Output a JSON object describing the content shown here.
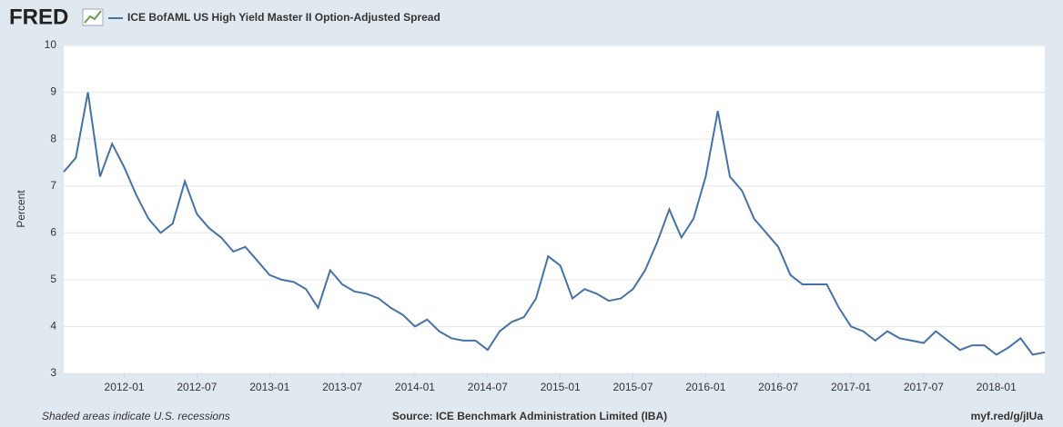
{
  "brand": "FRED",
  "chart_data": {
    "type": "line",
    "title": "ICE BofAML US High Yield Master II Option-Adjusted Spread",
    "y_label": "Percent",
    "x": [
      "2011-08",
      "2011-09",
      "2011-10",
      "2011-11",
      "2011-12",
      "2012-01",
      "2012-02",
      "2012-03",
      "2012-04",
      "2012-05",
      "2012-06",
      "2012-07",
      "2012-08",
      "2012-09",
      "2012-10",
      "2012-11",
      "2012-12",
      "2013-01",
      "2013-02",
      "2013-03",
      "2013-04",
      "2013-05",
      "2013-06",
      "2013-07",
      "2013-08",
      "2013-09",
      "2013-10",
      "2013-11",
      "2013-12",
      "2014-01",
      "2014-02",
      "2014-03",
      "2014-04",
      "2014-05",
      "2014-06",
      "2014-07",
      "2014-08",
      "2014-09",
      "2014-10",
      "2014-11",
      "2014-12",
      "2015-01",
      "2015-02",
      "2015-03",
      "2015-04",
      "2015-05",
      "2015-06",
      "2015-07",
      "2015-08",
      "2015-09",
      "2015-10",
      "2015-11",
      "2015-12",
      "2016-01",
      "2016-02",
      "2016-03",
      "2016-04",
      "2016-05",
      "2016-06",
      "2016-07",
      "2016-08",
      "2016-09",
      "2016-10",
      "2016-11",
      "2016-12",
      "2017-01",
      "2017-02",
      "2017-03",
      "2017-04",
      "2017-05",
      "2017-06",
      "2017-07",
      "2017-08",
      "2017-09",
      "2017-10",
      "2017-11",
      "2017-12",
      "2018-01",
      "2018-02",
      "2018-03",
      "2018-04",
      "2018-05"
    ],
    "series": [
      {
        "name": "ICE BofAML US High Yield Master II Option-Adjusted Spread",
        "color": "#4572a7",
        "values": [
          7.3,
          7.6,
          9.0,
          7.2,
          7.9,
          7.4,
          6.8,
          6.3,
          6.0,
          6.2,
          7.1,
          6.4,
          6.1,
          5.9,
          5.6,
          5.7,
          5.4,
          5.1,
          5.0,
          4.95,
          4.8,
          4.4,
          5.2,
          4.9,
          4.75,
          4.7,
          4.6,
          4.4,
          4.25,
          4.0,
          4.15,
          3.9,
          3.75,
          3.7,
          3.7,
          3.5,
          3.9,
          4.1,
          4.2,
          4.6,
          5.5,
          5.3,
          4.6,
          4.8,
          4.7,
          4.55,
          4.6,
          4.8,
          5.2,
          5.8,
          6.5,
          5.9,
          6.3,
          7.2,
          8.6,
          7.2,
          6.9,
          6.3,
          6.0,
          5.7,
          5.1,
          4.9,
          4.9,
          4.9,
          4.4,
          4.0,
          3.9,
          3.7,
          3.9,
          3.75,
          3.7,
          3.65,
          3.9,
          3.7,
          3.5,
          3.6,
          3.6,
          3.4,
          3.55,
          3.75,
          3.4,
          3.45
        ]
      }
    ],
    "xlim": [
      "2011-08",
      "2018-05"
    ],
    "xticks": [
      "2012-01",
      "2012-07",
      "2013-01",
      "2013-07",
      "2014-01",
      "2014-07",
      "2015-01",
      "2015-07",
      "2016-01",
      "2016-07",
      "2017-01",
      "2017-07",
      "2018-01"
    ],
    "ylim": [
      3,
      10
    ],
    "yticks": [
      3,
      4,
      5,
      6,
      7,
      8,
      9,
      10
    ],
    "grid": true
  },
  "footer": {
    "note": "Shaded areas indicate U.S. recessions",
    "source": "Source: ICE Benchmark Administration Limited (IBA)",
    "link": "myf.red/g/jIUa"
  }
}
